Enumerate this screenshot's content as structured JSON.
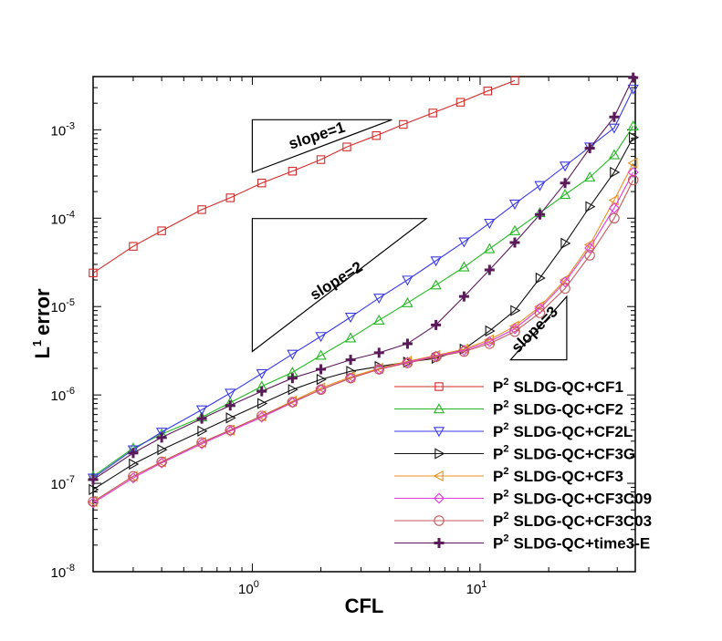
{
  "chart_data": {
    "type": "line",
    "title": "",
    "xlabel": "CFL",
    "ylabel_main": "L",
    "ylabel_sup": "1",
    "ylabel_rest": "error",
    "xscale": "log",
    "yscale": "log",
    "xlim": [
      0.2,
      48
    ],
    "ylim": [
      1e-08,
      0.004
    ],
    "legend_location": "bottom-right",
    "xticks": [
      {
        "value": 1,
        "base": "10",
        "exp": "0"
      },
      {
        "value": 10,
        "base": "10",
        "exp": "1"
      }
    ],
    "yticks": [
      {
        "value": 1e-08,
        "base": "10",
        "exp": "-8"
      },
      {
        "value": 1e-07,
        "base": "10",
        "exp": "-7"
      },
      {
        "value": 1e-06,
        "base": "10",
        "exp": "-6"
      },
      {
        "value": 1e-05,
        "base": "10",
        "exp": "-5"
      },
      {
        "value": 0.0001,
        "base": "10",
        "exp": "-4"
      },
      {
        "value": 0.001,
        "base": "10",
        "exp": "-3"
      }
    ],
    "slope_annotations": [
      {
        "label": "slope=1",
        "triangle": [
          [
            1.0,
            0.00033
          ],
          [
            4.1,
            0.0013
          ],
          [
            1.0,
            0.0013
          ]
        ],
        "label_at": [
          1.95,
          0.00076
        ],
        "angle": -18
      },
      {
        "label": "slope=2",
        "triangle": [
          [
            1.0,
            3.1e-06
          ],
          [
            5.8,
            9.9e-05
          ],
          [
            1.0,
            9.9e-05
          ]
        ],
        "label_at": [
          2.4,
          1.75e-05
        ],
        "angle": -32
      },
      {
        "label": "slope=3",
        "triangle": [
          [
            13.6,
            2.5e-06
          ],
          [
            24.0,
            2.5e-06
          ],
          [
            24.0,
            1.3e-05
          ]
        ],
        "label_at": [
          18.0,
          5e-06
        ],
        "angle": -45
      }
    ],
    "series": [
      {
        "name": "CF1",
        "label_prefix": "P",
        "label_sup": "2",
        "label_rest": "SLDG-QC+CF1",
        "color": "#d42a2a",
        "marker": "square",
        "x": [
          0.2,
          0.3,
          0.4,
          0.6,
          0.8,
          1.1,
          1.5,
          2.0,
          2.6,
          3.5,
          4.6,
          6.2,
          8.2,
          10.8,
          14.2
        ],
        "y": [
          2.4e-05,
          4.8e-05,
          7.2e-05,
          0.000125,
          0.00017,
          0.00025,
          0.00034,
          0.00046,
          0.00064,
          0.00086,
          0.00115,
          0.00155,
          0.00205,
          0.00275,
          0.0036
        ]
      },
      {
        "name": "CF2",
        "label_prefix": "P",
        "label_sup": "2",
        "label_rest": "SLDG-QC+CF2",
        "color": "#22b822",
        "marker": "triangle-up",
        "x": [
          0.2,
          0.3,
          0.4,
          0.6,
          0.8,
          1.1,
          1.5,
          2.0,
          2.7,
          3.6,
          4.8,
          6.4,
          8.5,
          11.0,
          14.2,
          18.3,
          23.6,
          30.3,
          38.8,
          47.0
        ],
        "y": [
          1.2e-07,
          2.5e-07,
          3.6e-07,
          5.6e-07,
          8.2e-07,
          1.25e-06,
          1.8e-06,
          2.8e-06,
          4.4e-06,
          7e-06,
          1.1e-05,
          1.75e-05,
          2.8e-05,
          4.5e-05,
          7.2e-05,
          0.000115,
          0.000185,
          0.00029,
          0.00052,
          0.0011
        ]
      },
      {
        "name": "CF2L",
        "label_prefix": "P",
        "label_sup": "2",
        "label_rest": "SLDG-QC+CF2L",
        "color": "#3a3ae8",
        "marker": "triangle-down",
        "x": [
          0.2,
          0.3,
          0.4,
          0.6,
          0.8,
          1.1,
          1.5,
          2.0,
          2.7,
          3.6,
          4.8,
          6.4,
          8.5,
          11.0,
          14.2,
          18.3,
          23.6,
          30.3,
          38.8,
          47.0
        ],
        "y": [
          1.15e-07,
          2.4e-07,
          3.8e-07,
          6.8e-07,
          1.05e-06,
          1.75e-06,
          2.9e-06,
          4.6e-06,
          7.6e-06,
          1.25e-05,
          2e-05,
          3.3e-05,
          5.4e-05,
          8.8e-05,
          0.000145,
          0.000235,
          0.00039,
          0.00064,
          0.00105,
          0.0029
        ]
      },
      {
        "name": "CF3G",
        "label_prefix": "P",
        "label_sup": "2",
        "label_rest": "SLDG-QC+CF3G",
        "color": "#111111",
        "marker": "triangle-right",
        "x": [
          0.2,
          0.3,
          0.4,
          0.6,
          0.8,
          1.1,
          1.5,
          2.0,
          2.7,
          3.6,
          4.8,
          6.4,
          8.5,
          11.0,
          14.2,
          18.3,
          23.6,
          30.3,
          38.8,
          47.0
        ],
        "y": [
          8.5e-08,
          1.65e-07,
          2.4e-07,
          3.9e-07,
          5.5e-07,
          8e-07,
          1.15e-06,
          1.5e-06,
          1.85e-06,
          2.1e-06,
          2.35e-06,
          2.6e-06,
          3.3e-06,
          5.3e-06,
          9e-06,
          2.1e-05,
          5.2e-05,
          0.000135,
          0.00033,
          0.00082
        ]
      },
      {
        "name": "CF3",
        "label_prefix": "P",
        "label_sup": "2",
        "label_rest": "SLDG-QC+CF3",
        "color": "#e8901e",
        "marker": "triangle-left",
        "x": [
          0.2,
          0.3,
          0.4,
          0.6,
          0.8,
          1.1,
          1.5,
          2.0,
          2.7,
          3.6,
          4.8,
          6.4,
          8.5,
          11.0,
          14.2,
          18.3,
          23.6,
          30.3,
          38.8,
          47.0
        ],
        "y": [
          6.2e-08,
          1.2e-07,
          1.75e-07,
          2.9e-07,
          4e-07,
          5.8e-07,
          8.5e-07,
          1.2e-06,
          1.6e-06,
          2e-06,
          2.4e-06,
          2.8e-06,
          3.3e-06,
          4.2e-06,
          6e-06,
          1e-05,
          2e-05,
          5e-05,
          0.00016,
          0.00042
        ]
      },
      {
        "name": "CF3C09",
        "label_prefix": "P",
        "label_sup": "2",
        "label_rest": "SLDG-QC+CF3C09",
        "color": "#e03ae0",
        "marker": "diamond",
        "x": [
          0.2,
          0.3,
          0.4,
          0.6,
          0.8,
          1.1,
          1.5,
          2.0,
          2.7,
          3.6,
          4.8,
          6.4,
          8.5,
          11.0,
          14.2,
          18.3,
          23.6,
          30.3,
          38.8,
          47.0
        ],
        "y": [
          6e-08,
          1.15e-07,
          1.7e-07,
          2.8e-07,
          3.9e-07,
          5.6e-07,
          8.2e-07,
          1.15e-06,
          1.55e-06,
          1.95e-06,
          2.35e-06,
          2.75e-06,
          3.2e-06,
          4e-06,
          5.6e-06,
          9.5e-06,
          1.9e-05,
          4.6e-05,
          0.00013,
          0.00033
        ]
      },
      {
        "name": "CF3C03",
        "label_prefix": "P",
        "label_sup": "2",
        "label_rest": "SLDG-QC+CF3C03",
        "color": "#c45a5a",
        "marker": "circle",
        "x": [
          0.2,
          0.3,
          0.4,
          0.6,
          0.8,
          1.1,
          1.5,
          2.0,
          2.7,
          3.6,
          4.8,
          6.4,
          8.5,
          11.0,
          14.2,
          18.3,
          23.6,
          30.3,
          38.8,
          47.0
        ],
        "y": [
          6.2e-08,
          1.2e-07,
          1.75e-07,
          2.9e-07,
          4e-07,
          5.8e-07,
          8.3e-07,
          1.15e-06,
          1.55e-06,
          1.95e-06,
          2.3e-06,
          2.7e-06,
          3.1e-06,
          3.8e-06,
          5.2e-06,
          8.5e-06,
          1.6e-05,
          3.8e-05,
          0.0001,
          0.00027
        ]
      },
      {
        "name": "time3-E",
        "label_prefix": "P",
        "label_sup": "2",
        "label_rest": "SLDG-QC+time3-E",
        "color": "#5a1a5a",
        "marker": "plus",
        "x": [
          0.2,
          0.3,
          0.4,
          0.6,
          0.8,
          1.1,
          1.5,
          2.0,
          2.7,
          3.6,
          4.8,
          6.4,
          8.5,
          11.0,
          14.2,
          18.3,
          23.6,
          30.3,
          38.8,
          47.0
        ],
        "y": [
          1.1e-07,
          2.2e-07,
          3.3e-07,
          5.4e-07,
          7.6e-07,
          1.1e-06,
          1.55e-06,
          1.95e-06,
          2.5e-06,
          3e-06,
          3.8e-06,
          6.2e-06,
          1.3e-05,
          2.6e-05,
          5.3e-05,
          0.00011,
          0.00025,
          0.00062,
          0.0014,
          0.0039
        ]
      }
    ]
  }
}
